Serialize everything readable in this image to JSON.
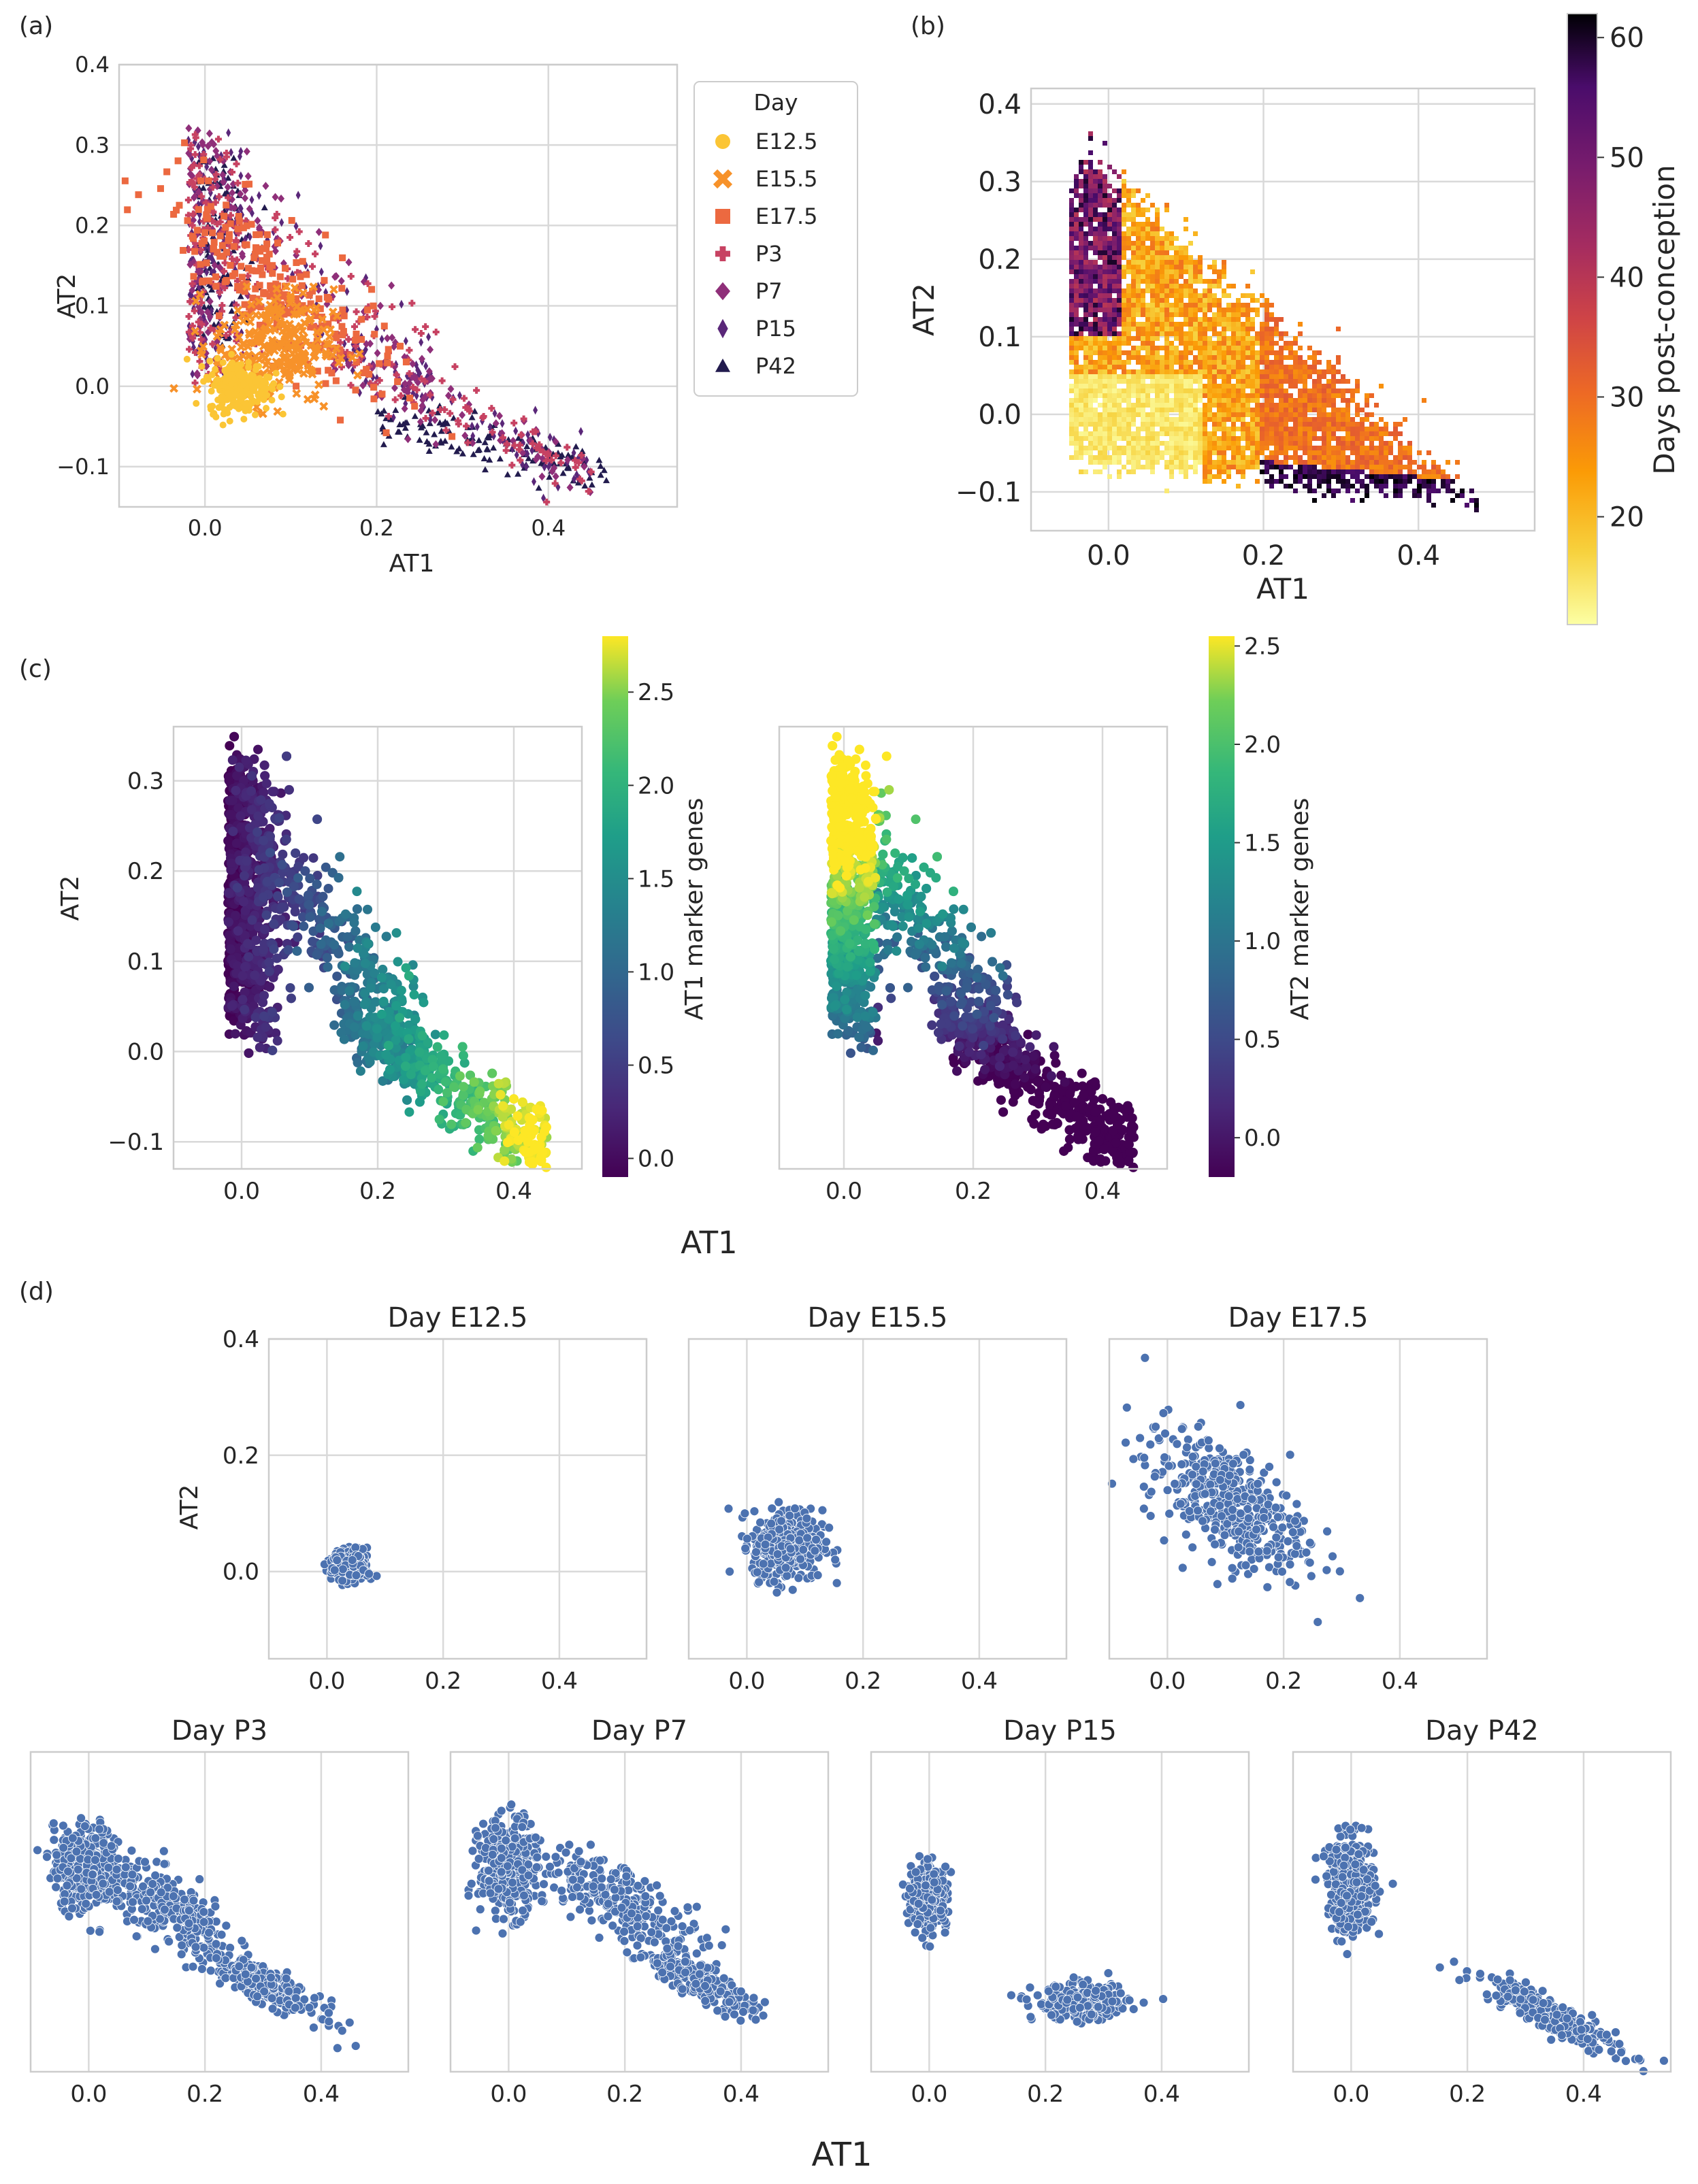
{
  "panel_labels": [
    "(a)",
    "(b)",
    "(c)",
    "(d)"
  ],
  "shared_labels": {
    "at1": "AT1",
    "at2": "AT2"
  },
  "legend": {
    "title": "Day",
    "entries": [
      {
        "label": "E12.5",
        "marker": "circle",
        "color": "#fbc535"
      },
      {
        "label": "E15.5",
        "marker": "x",
        "color": "#f7922a"
      },
      {
        "label": "E17.5",
        "marker": "square",
        "color": "#ec6940"
      },
      {
        "label": "P3",
        "marker": "plus",
        "color": "#c74262"
      },
      {
        "label": "P7",
        "marker": "diamond",
        "color": "#8f2f79"
      },
      {
        "label": "P15",
        "marker": "thin-diamond",
        "color": "#5a2779"
      },
      {
        "label": "P42",
        "marker": "triangle",
        "color": "#221b4e"
      }
    ]
  },
  "colorbars": {
    "days": {
      "label": "Days post-conception",
      "ticks": [
        "20",
        "30",
        "40",
        "50",
        "60"
      ],
      "range": [
        11,
        62
      ],
      "colormap": "inferno_r"
    },
    "at1_markers": {
      "label": "AT1 marker genes",
      "ticks": [
        "0.0",
        "0.5",
        "1.0",
        "1.5",
        "2.0",
        "2.5"
      ],
      "range": [
        -0.1,
        2.8
      ],
      "colormap": "viridis"
    },
    "at2_markers": {
      "label": "AT2 marker genes",
      "ticks": [
        "0.0",
        "0.5",
        "1.0",
        "1.5",
        "2.0",
        "2.5"
      ],
      "range": [
        -0.2,
        2.55
      ],
      "colormap": "viridis"
    }
  },
  "chart_data": [
    {
      "id": "a",
      "type": "scatter",
      "xlabel": "AT1",
      "ylabel": "AT2",
      "xlim": [
        -0.1,
        0.55
      ],
      "ylim": [
        -0.15,
        0.4
      ],
      "xticks": [
        "0.0",
        "0.2",
        "0.4"
      ],
      "yticks": [
        "−0.1",
        "0.0",
        "0.1",
        "0.2",
        "0.3",
        "0.4"
      ],
      "grid": true,
      "legend_position": "right",
      "series": [
        {
          "name": "E12.5",
          "points": [
            [
              0.04,
              0.01
            ]
          ]
        },
        {
          "name": "E15.5",
          "points": [
            [
              0.08,
              0.05
            ]
          ]
        },
        {
          "name": "E17.5",
          "points": [
            [
              0.1,
              0.1
            ]
          ]
        },
        {
          "name": "P3",
          "points": [
            [
              0.0,
              0.2
            ],
            [
              0.25,
              0.0
            ]
          ]
        },
        {
          "name": "P7",
          "points": [
            [
              0.0,
              0.18
            ],
            [
              0.3,
              -0.04
            ]
          ]
        },
        {
          "name": "P15",
          "points": [
            [
              0.0,
              0.2
            ],
            [
              0.25,
              -0.04
            ]
          ]
        },
        {
          "name": "P42",
          "points": [
            [
              0.0,
              0.15
            ],
            [
              0.35,
              -0.08
            ]
          ]
        }
      ]
    },
    {
      "id": "b",
      "type": "heatmap",
      "xlabel": "AT1",
      "ylabel": "AT2",
      "xlim": [
        -0.1,
        0.55
      ],
      "ylim": [
        -0.15,
        0.42
      ],
      "xticks": [
        "0.0",
        "0.2",
        "0.4"
      ],
      "yticks": [
        "−0.1",
        "0.0",
        "0.1",
        "0.2",
        "0.3",
        "0.4"
      ],
      "grid": true,
      "value_label": "Days post-conception"
    },
    {
      "id": "c1",
      "type": "scatter",
      "xlabel": "AT1",
      "ylabel": "AT2",
      "xlim": [
        -0.1,
        0.5
      ],
      "ylim": [
        -0.13,
        0.36
      ],
      "xticks": [
        "0.0",
        "0.2",
        "0.4"
      ],
      "yticks": [
        "−0.1",
        "0.0",
        "0.1",
        "0.2",
        "0.3"
      ],
      "grid": true,
      "color_label": "AT1 marker genes"
    },
    {
      "id": "c2",
      "type": "scatter",
      "xlabel": "AT1",
      "ylabel": "AT2",
      "xlim": [
        -0.1,
        0.5
      ],
      "ylim": [
        -0.13,
        0.36
      ],
      "xticks": [
        "0.0",
        "0.2",
        "0.4"
      ],
      "yticks": [],
      "grid": true,
      "color_label": "AT2 marker genes"
    },
    {
      "id": "d-E12.5",
      "type": "scatter",
      "title": "Day E12.5",
      "xlabel": "AT1",
      "ylabel": "AT2",
      "xlim": [
        -0.1,
        0.55
      ],
      "ylim": [
        -0.15,
        0.4
      ],
      "xticks": [
        "0.0",
        "0.2",
        "0.4"
      ],
      "yticks": [
        "0.0",
        "0.2",
        "0.4"
      ],
      "grid": true,
      "color": "#4c72b0",
      "clusters": [
        {
          "center": [
            0.04,
            0.01
          ],
          "spread": [
            0.015,
            0.013
          ]
        }
      ]
    },
    {
      "id": "d-E15.5",
      "type": "scatter",
      "title": "Day E15.5",
      "xlabel": "AT1",
      "ylabel": "AT2",
      "xlim": [
        -0.1,
        0.55
      ],
      "ylim": [
        -0.15,
        0.4
      ],
      "xticks": [
        "0.0",
        "0.2",
        "0.4"
      ],
      "yticks": [],
      "grid": true,
      "color": "#4c72b0",
      "clusters": [
        {
          "center": [
            0.07,
            0.045
          ],
          "spread": [
            0.03,
            0.03
          ]
        }
      ]
    },
    {
      "id": "d-E17.5",
      "type": "scatter",
      "title": "Day E17.5",
      "xlabel": "AT1",
      "ylabel": "AT2",
      "xlim": [
        -0.1,
        0.55
      ],
      "ylim": [
        -0.15,
        0.4
      ],
      "xticks": [
        "0.0",
        "0.2",
        "0.4"
      ],
      "yticks": [],
      "grid": true,
      "color": "#4c72b0",
      "clusters": [
        {
          "center": [
            0.1,
            0.12
          ],
          "spread": [
            0.07,
            0.05
          ]
        }
      ]
    },
    {
      "id": "d-P3",
      "type": "scatter",
      "title": "Day P3",
      "xlabel": "AT1",
      "ylabel": "AT2",
      "xlim": [
        -0.1,
        0.55
      ],
      "ylim": [
        -0.15,
        0.4
      ],
      "xticks": [
        "0.0",
        "0.2",
        "0.4"
      ],
      "yticks": [],
      "grid": true,
      "color": "#4c72b0",
      "clusters": [
        {
          "center": [
            0.0,
            0.2
          ],
          "spread": [
            0.03,
            0.035
          ]
        },
        {
          "center": [
            0.15,
            0.12
          ],
          "spread": [
            0.05,
            0.03
          ]
        },
        {
          "center": [
            0.3,
            0.0
          ],
          "spread": [
            0.05,
            0.015
          ]
        }
      ]
    },
    {
      "id": "d-P7",
      "type": "scatter",
      "title": "Day P7",
      "xlabel": "AT1",
      "ylabel": "AT2",
      "xlim": [
        -0.1,
        0.55
      ],
      "ylim": [
        -0.15,
        0.4
      ],
      "xticks": [
        "0.0",
        "0.2",
        "0.4"
      ],
      "yticks": [],
      "grid": true,
      "color": "#4c72b0",
      "clusters": [
        {
          "center": [
            0.0,
            0.2
          ],
          "spread": [
            0.025,
            0.04
          ]
        },
        {
          "center": [
            0.2,
            0.14
          ],
          "spread": [
            0.07,
            0.03
          ]
        },
        {
          "center": [
            0.32,
            0.01
          ],
          "spread": [
            0.05,
            0.015
          ]
        }
      ]
    },
    {
      "id": "d-P15",
      "type": "scatter",
      "title": "Day P15",
      "xlabel": "AT1",
      "ylabel": "AT2",
      "xlim": [
        -0.1,
        0.55
      ],
      "ylim": [
        -0.15,
        0.4
      ],
      "xticks": [
        "0.0",
        "0.2",
        "0.4"
      ],
      "yticks": [],
      "grid": true,
      "color": "#4c72b0",
      "clusters": [
        {
          "center": [
            0.0,
            0.15
          ],
          "spread": [
            0.015,
            0.025
          ]
        },
        {
          "center": [
            0.26,
            -0.03
          ],
          "spread": [
            0.04,
            0.015
          ]
        }
      ]
    },
    {
      "id": "d-P42",
      "type": "scatter",
      "title": "Day P42",
      "xlabel": "AT1",
      "ylabel": "AT2",
      "xlim": [
        -0.1,
        0.55
      ],
      "ylim": [
        -0.15,
        0.4
      ],
      "xticks": [
        "0.0",
        "0.2",
        "0.4"
      ],
      "yticks": [],
      "grid": true,
      "color": "#4c72b0",
      "clusters": [
        {
          "center": [
            0.0,
            0.17
          ],
          "spread": [
            0.02,
            0.04
          ]
        },
        {
          "center": [
            0.34,
            -0.05
          ],
          "spread": [
            0.06,
            0.015
          ]
        }
      ]
    }
  ]
}
